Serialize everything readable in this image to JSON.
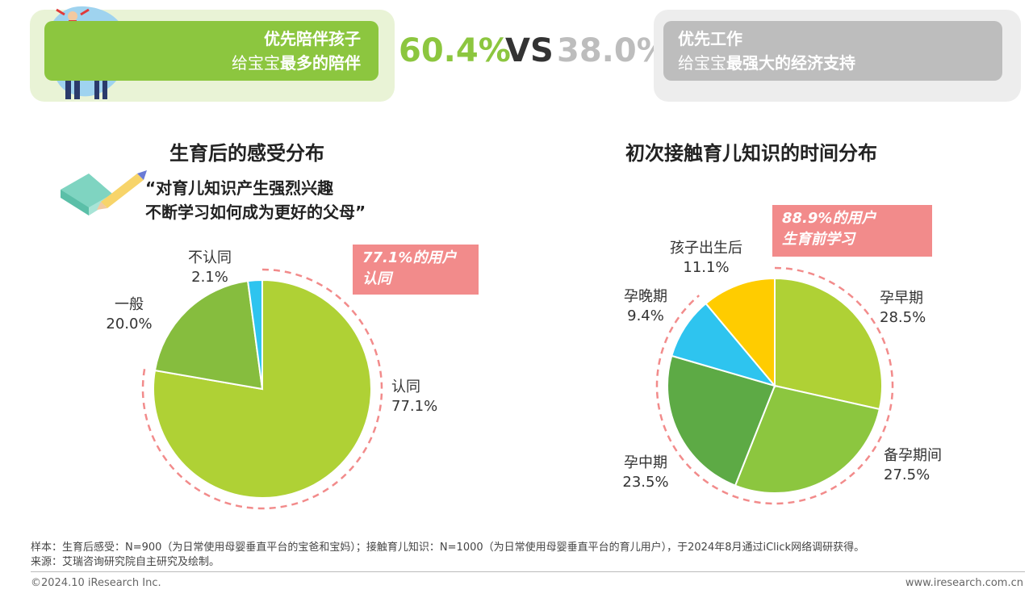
{
  "comparison": {
    "left_line1": "优先陪伴孩子",
    "left_line2_a": "给宝宝",
    "left_line2_b": "最多的陪伴",
    "left_pct": "60.4%",
    "vs": "VS",
    "right_pct": "38.0%",
    "right_line1": "优先工作",
    "right_line2_a": "给宝宝",
    "right_line2_b": "最强大的经济支持",
    "colors": {
      "green": "#8cc63f",
      "gray": "#bdbdbd"
    }
  },
  "left_section": {
    "title": "生育后的感受分布",
    "quote_line1": "“对育儿知识产生强烈兴趣",
    "quote_line2": "不断学习如何成为更好的父母”",
    "callout_line1": "77.1%的用户",
    "callout_line2": "认同"
  },
  "right_section": {
    "title": "初次接触育儿知识的时间分布",
    "callout_line1": "88.9%的用户",
    "callout_line2": "生育前学习"
  },
  "chart_data": [
    {
      "type": "pie",
      "title": "生育后的感受分布",
      "slices": [
        {
          "label": "认同",
          "value": 77.1,
          "value_label": "77.1%",
          "color": "#afd135"
        },
        {
          "label": "一般",
          "value": 20.0,
          "value_label": "20.0%",
          "color": "#86bd3e"
        },
        {
          "label": "不认同",
          "value": 2.1,
          "value_label": "2.1%",
          "color": "#2ec4ef"
        }
      ],
      "start": "12 o'clock",
      "direction": "clockwise"
    },
    {
      "type": "pie",
      "title": "初次接触育儿知识的时间分布",
      "slices": [
        {
          "label": "孕早期",
          "value": 28.5,
          "value_label": "28.5%",
          "color": "#afd135"
        },
        {
          "label": "备孕期间",
          "value": 27.5,
          "value_label": "27.5%",
          "color": "#8cc63f"
        },
        {
          "label": "孕中期",
          "value": 23.5,
          "value_label": "23.5%",
          "color": "#5daa45"
        },
        {
          "label": "孕晚期",
          "value": 9.4,
          "value_label": "9.4%",
          "color": "#2ec4ef"
        },
        {
          "label": "孩子出生后",
          "value": 11.1,
          "value_label": "11.1%",
          "color": "#ffcc00"
        }
      ],
      "start": "12 o'clock",
      "direction": "clockwise"
    }
  ],
  "footnote": {
    "line1": "样本：生育后感受：N=900（为日常使用母婴垂直平台的宝爸和宝妈）；接触育儿知识：N=1000（为日常使用母婴垂直平台的育儿用户），于2024年8月通过iClick网络调研获得。",
    "line2": "来源：艾瑞咨询研究院自主研究及绘制。"
  },
  "footer": {
    "copyright": "©2024.10 iResearch Inc.",
    "url": "www.iresearch.com.cn"
  }
}
